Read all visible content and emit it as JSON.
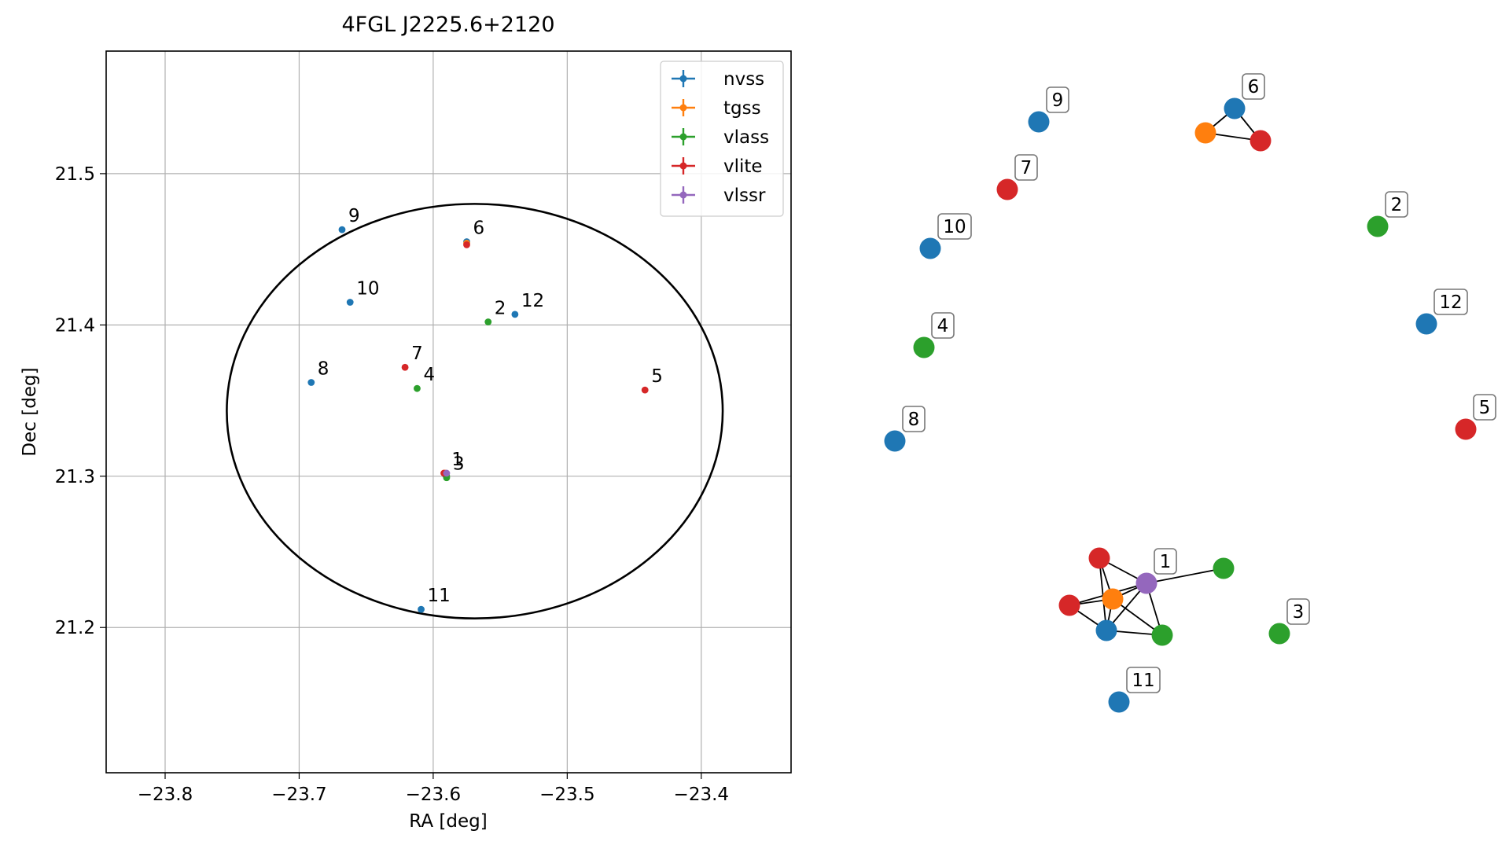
{
  "chart_data": [
    {
      "type": "scatter",
      "title": "4FGL J2225.6+2120",
      "xlabel": "RA [deg]",
      "ylabel": "Dec [deg]",
      "xlim": [
        -23.844,
        -23.333
      ],
      "ylim": [
        21.104,
        21.581
      ],
      "xticks": [
        -23.8,
        -23.7,
        -23.6,
        -23.5,
        -23.4
      ],
      "xtick_labels": [
        "−23.8",
        "−23.7",
        "−23.6",
        "−23.5",
        "−23.4"
      ],
      "yticks": [
        21.2,
        21.3,
        21.4,
        21.5
      ],
      "ytick_labels": [
        "21.2",
        "21.3",
        "21.4",
        "21.5"
      ],
      "grid": true,
      "legend_position": "top-right",
      "ellipse": {
        "center": [
          -23.569,
          21.343
        ],
        "radius_x": 0.185,
        "radius_y": 0.137,
        "color": "#000000"
      },
      "series": [
        {
          "name": "nvss",
          "color": "#1f77b4",
          "points": [
            {
              "label": "9",
              "x": -23.668,
              "y": 21.463
            },
            {
              "label": "10",
              "x": -23.662,
              "y": 21.415
            },
            {
              "label": "8",
              "x": -23.691,
              "y": 21.362
            },
            {
              "label": "6",
              "x": -23.575,
              "y": 21.455
            },
            {
              "label": "12",
              "x": -23.539,
              "y": 21.407
            },
            {
              "label": "1",
              "x": -23.591,
              "y": 21.301
            },
            {
              "label": "11",
              "x": -23.609,
              "y": 21.212
            }
          ]
        },
        {
          "name": "tgss",
          "color": "#ff7f0e",
          "points": [
            {
              "label": "1",
              "x": -23.591,
              "y": 21.302
            },
            {
              "label": "6",
              "x": -23.575,
              "y": 21.454
            }
          ]
        },
        {
          "name": "vlass",
          "color": "#2ca02c",
          "points": [
            {
              "label": "2",
              "x": -23.559,
              "y": 21.402
            },
            {
              "label": "4",
              "x": -23.612,
              "y": 21.358
            },
            {
              "label": "3",
              "x": -23.59,
              "y": 21.299
            },
            {
              "label": "1",
              "x": -23.59,
              "y": 21.3
            }
          ]
        },
        {
          "name": "vlite",
          "color": "#d62728",
          "points": [
            {
              "label": "7",
              "x": -23.621,
              "y": 21.372
            },
            {
              "label": "5",
              "x": -23.442,
              "y": 21.357
            },
            {
              "label": "6",
              "x": -23.575,
              "y": 21.453
            },
            {
              "label": "1",
              "x": -23.592,
              "y": 21.302
            }
          ]
        },
        {
          "name": "vlssr",
          "color": "#9467bd",
          "points": [
            {
              "label": "1",
              "x": -23.59,
              "y": 21.302
            }
          ]
        }
      ],
      "annotations": [
        {
          "text": "9",
          "x": -23.668,
          "y": 21.463
        },
        {
          "text": "10",
          "x": -23.662,
          "y": 21.415
        },
        {
          "text": "8",
          "x": -23.691,
          "y": 21.362
        },
        {
          "text": "6",
          "x": -23.575,
          "y": 21.455
        },
        {
          "text": "2",
          "x": -23.559,
          "y": 21.402
        },
        {
          "text": "12",
          "x": -23.539,
          "y": 21.407
        },
        {
          "text": "7",
          "x": -23.621,
          "y": 21.372
        },
        {
          "text": "4",
          "x": -23.612,
          "y": 21.358
        },
        {
          "text": "5",
          "x": -23.442,
          "y": 21.357
        },
        {
          "text": "1",
          "x": -23.591,
          "y": 21.302
        },
        {
          "text": "3",
          "x": -23.59,
          "y": 21.299
        },
        {
          "text": "11",
          "x": -23.609,
          "y": 21.212
        }
      ]
    },
    {
      "type": "network",
      "nodes": [
        {
          "id": "n9",
          "series": "nvss",
          "label": "9"
        },
        {
          "id": "n6",
          "series": "nvss",
          "label": "6"
        },
        {
          "id": "t6",
          "series": "tgss",
          "label": ""
        },
        {
          "id": "r6",
          "series": "vlite",
          "label": ""
        },
        {
          "id": "r7",
          "series": "vlite",
          "label": "7"
        },
        {
          "id": "g2",
          "series": "vlass",
          "label": "2"
        },
        {
          "id": "n10",
          "series": "nvss",
          "label": "10"
        },
        {
          "id": "g4",
          "series": "vlass",
          "label": "4"
        },
        {
          "id": "n12",
          "series": "nvss",
          "label": "12"
        },
        {
          "id": "n8",
          "series": "nvss",
          "label": "8"
        },
        {
          "id": "r5",
          "series": "vlite",
          "label": "5"
        },
        {
          "id": "r1a",
          "series": "vlite",
          "label": ""
        },
        {
          "id": "r1b",
          "series": "vlite",
          "label": ""
        },
        {
          "id": "t1",
          "series": "tgss",
          "label": ""
        },
        {
          "id": "p1",
          "series": "vlssr",
          "label": "1"
        },
        {
          "id": "g1a",
          "series": "vlass",
          "label": ""
        },
        {
          "id": "n1",
          "series": "nvss",
          "label": ""
        },
        {
          "id": "g1b",
          "series": "vlass",
          "label": ""
        },
        {
          "id": "g3",
          "series": "vlass",
          "label": "3"
        },
        {
          "id": "n11",
          "series": "nvss",
          "label": "11"
        }
      ],
      "edges": [
        [
          "n6",
          "t6"
        ],
        [
          "n6",
          "r6"
        ],
        [
          "t6",
          "r6"
        ],
        [
          "r1a",
          "t1"
        ],
        [
          "r1a",
          "p1"
        ],
        [
          "r1a",
          "n1"
        ],
        [
          "r1b",
          "t1"
        ],
        [
          "r1b",
          "p1"
        ],
        [
          "r1b",
          "n1"
        ],
        [
          "t1",
          "p1"
        ],
        [
          "t1",
          "n1"
        ],
        [
          "t1",
          "g1b"
        ],
        [
          "p1",
          "g1a"
        ],
        [
          "p1",
          "n1"
        ],
        [
          "p1",
          "g1b"
        ],
        [
          "n1",
          "g1b"
        ]
      ]
    }
  ]
}
